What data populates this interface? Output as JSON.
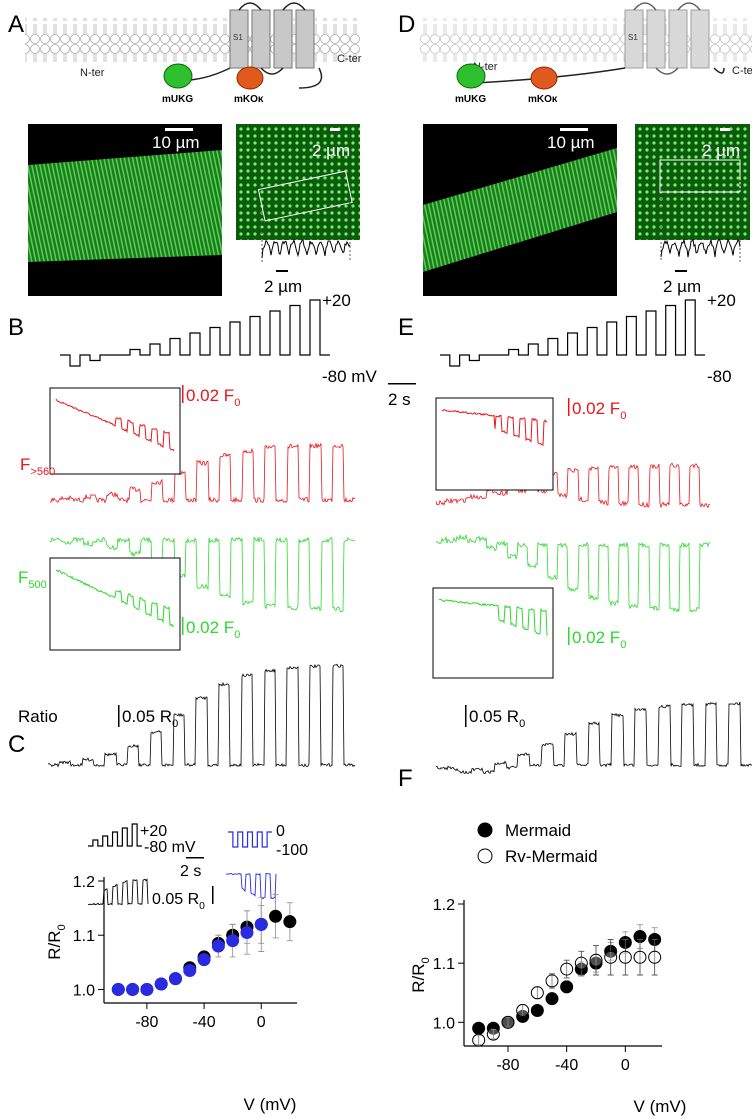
{
  "panels": {
    "A": {
      "label": "A",
      "s1": "S1",
      "n_ter": "N-ter",
      "c_ter": "C-ter",
      "mukg": "mUKG",
      "mko": "mKOκ",
      "scale_main": "10 µm",
      "scale_inset": "2 µm",
      "scale_profile": "2 µm"
    },
    "B": {
      "label": "B",
      "v_high": "+20",
      "v_low": "-80 mV",
      "red_name": {
        "main": "F",
        "sub": ">560"
      },
      "red_scale": {
        "main": "0.02 F",
        "sub": "0"
      },
      "green_name": {
        "main": "F",
        "sub": "500"
      },
      "green_scale": {
        "main": "0.02 F",
        "sub": "0"
      },
      "ratio_name": "Ratio",
      "ratio_scale": {
        "main": "0.05 R",
        "sub": "0"
      }
    },
    "C": {
      "label": "C",
      "black_high": "+20",
      "black_low": "-80 mV",
      "blue_high": "0",
      "blue_low": "-100",
      "time_scale": "2 s",
      "ratio_scale": {
        "main": "0.05 R",
        "sub": "0"
      }
    },
    "D": {
      "label": "D",
      "s1": "S1",
      "n_ter": "N-ter",
      "c_ter": "C-ter",
      "mukg": "mUKG",
      "mko": "mKOκ",
      "scale_main": "10 µm",
      "scale_inset": "2 µm",
      "scale_profile": "2 µm"
    },
    "E": {
      "label": "E",
      "v_high": "+20",
      "v_low": "-80",
      "time_scale": "2 s",
      "red_scale": {
        "main": "0.02 F",
        "sub": "0"
      },
      "green_scale": {
        "main": "0.02 F",
        "sub": "0"
      },
      "ratio_scale": {
        "main": "0.05 R",
        "sub": "0"
      }
    },
    "F": {
      "label": "F"
    }
  },
  "chart_data": [
    {
      "type": "scatter",
      "x_label": "V (mV)",
      "y_label": {
        "main": "R/R",
        "sub": "0"
      },
      "x": [
        -100,
        -90,
        -80,
        -70,
        -60,
        -50,
        -40,
        -30,
        -20,
        -10,
        0,
        10,
        20
      ],
      "xlim": [
        -110,
        25
      ],
      "xticks": [
        -80,
        -40,
        0
      ],
      "ylim": [
        0.975,
        1.2
      ],
      "yticks": [
        {
          "value": 1.0,
          "label": "1.0"
        },
        {
          "value": 1.1,
          "label": "1.1"
        },
        {
          "value": 1.2,
          "label": "1.2"
        }
      ],
      "series": [
        {
          "color": "#000000",
          "filled": true,
          "values": [
            1.0,
            1.0,
            1.0,
            1.01,
            1.02,
            1.04,
            1.06,
            1.085,
            1.1,
            1.115,
            1.12,
            1.135,
            1.125
          ],
          "errors": [
            0.003,
            0.003,
            0.004,
            0.005,
            0.006,
            0.008,
            0.01,
            0.015,
            0.02,
            0.03,
            0.035,
            0.04,
            0.035
          ]
        },
        {
          "color": "#2a2ae0",
          "filled": true,
          "values": [
            1.0,
            1.0,
            1.0,
            1.01,
            1.02,
            1.035,
            1.055,
            1.08,
            1.09,
            1.105,
            1.12,
            null,
            null
          ],
          "errors": [
            0.003,
            0.003,
            0.004,
            0.005,
            0.006,
            0.008,
            0.01,
            0.02,
            0.03,
            0.04,
            0.05,
            null,
            null
          ]
        }
      ]
    },
    {
      "type": "scatter",
      "x_label": "V (mV)",
      "y_label": {
        "main": "R/R",
        "sub": "0"
      },
      "legend": "top-left",
      "x": [
        -100,
        -90,
        -80,
        -70,
        -60,
        -50,
        -40,
        -30,
        -20,
        -10,
        0,
        10,
        20
      ],
      "xlim": [
        -110,
        25
      ],
      "xticks": [
        -80,
        -40,
        0
      ],
      "ylim": [
        0.96,
        1.2
      ],
      "yticks": [
        {
          "value": 1.0,
          "label": "1.0"
        },
        {
          "value": 1.1,
          "label": "1.1"
        },
        {
          "value": 1.2,
          "label": "1.2"
        }
      ],
      "series": [
        {
          "name": "Mermaid",
          "color": "#000000",
          "filled": true,
          "values": [
            0.99,
            0.99,
            1.0,
            1.01,
            1.02,
            1.04,
            1.06,
            1.09,
            1.1,
            1.12,
            1.135,
            1.145,
            1.14
          ],
          "errors": [
            0.004,
            0.004,
            0.005,
            0.006,
            0.007,
            0.008,
            0.01,
            0.012,
            0.015,
            0.015,
            0.018,
            0.02,
            0.02
          ]
        },
        {
          "name": "Rv-Mermaid",
          "color": "#000000",
          "filled": false,
          "values": [
            0.97,
            0.98,
            1.0,
            1.02,
            1.05,
            1.07,
            1.09,
            1.1,
            1.105,
            1.11,
            1.11,
            1.11,
            1.11
          ],
          "errors": [
            0.008,
            0.008,
            0.008,
            0.01,
            0.01,
            0.012,
            0.015,
            0.02,
            0.025,
            0.03,
            0.03,
            0.03,
            0.03
          ]
        }
      ]
    }
  ]
}
